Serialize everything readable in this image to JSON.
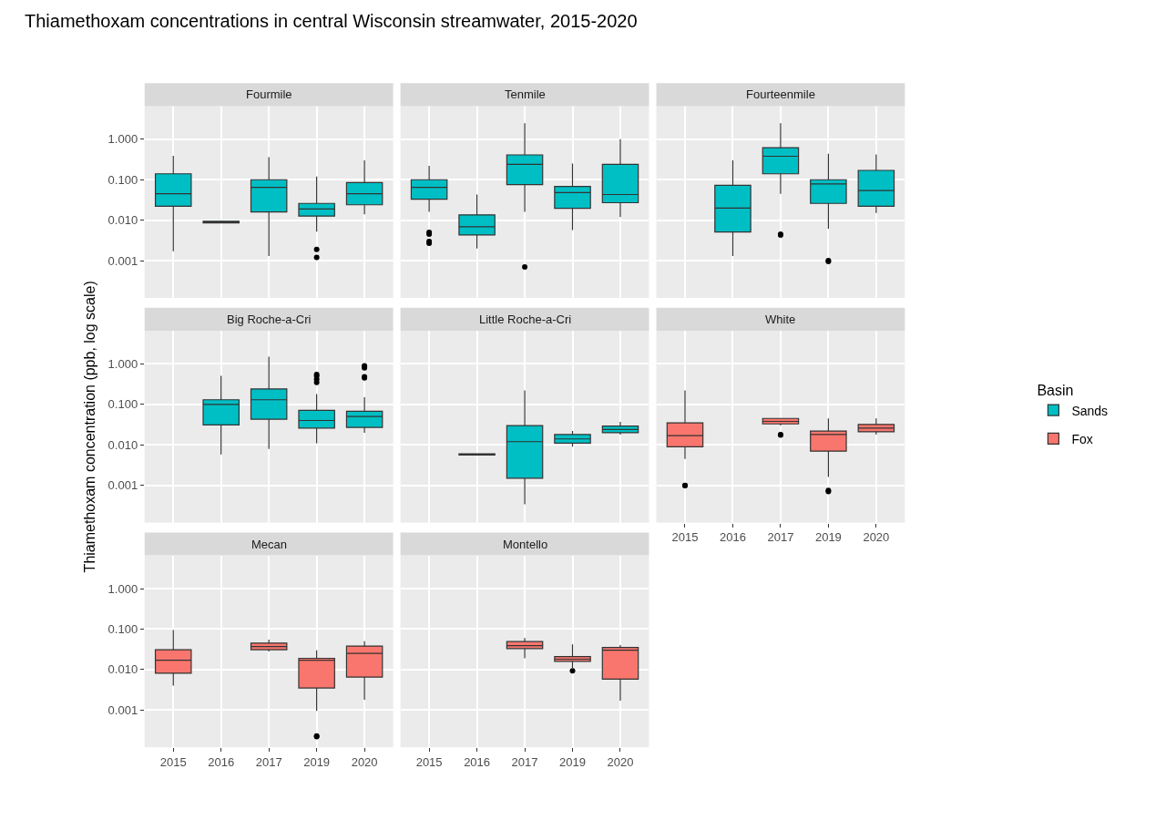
{
  "chart_data": [
    {
      "type": "box",
      "title": "Fourmile",
      "annotations": [
        "Thiamethoxam concentrations in central Wisconsin streamwater, 2015-2020"
      ],
      "categories": [
        "2015",
        "2016",
        "2017",
        "2019",
        "2020"
      ],
      "log": "y",
      "grid": true,
      "tick_labels": "y",
      "ylim": [
        0.00012,
        6.6
      ],
      "yticks": [
        {
          "value": 0.001,
          "label": "0.001"
        },
        {
          "value": 0.01,
          "label": "0.010"
        },
        {
          "value": 0.1,
          "label": "0.100"
        },
        {
          "value": 1,
          "label": "1.000"
        }
      ],
      "series": [
        {
          "name": "Sands",
          "color": "#00bfc4",
          "boxes": [
            {
              "low": 0.0017,
              "q1": 0.022,
              "median": 0.045,
              "q3": 0.14,
              "high": 0.39
            },
            {
              "low": 0.0084,
              "q1": 0.0086,
              "median": 0.009,
              "q3": 0.0094,
              "high": 0.0094
            },
            {
              "low": 0.0013,
              "q1": 0.016,
              "median": 0.065,
              "q3": 0.1,
              "high": 0.36
            },
            {
              "low": 0.0052,
              "q1": 0.0126,
              "median": 0.019,
              "q3": 0.026,
              "high": 0.12,
              "outliers": [
                0.0019,
                0.0012
              ]
            },
            {
              "low": 0.014,
              "q1": 0.024,
              "median": 0.045,
              "q3": 0.085,
              "high": 0.3
            }
          ]
        }
      ]
    },
    {
      "type": "box",
      "title": "Tenmile",
      "categories": [
        "2015",
        "2016",
        "2017",
        "2019",
        "2020"
      ],
      "log": "y",
      "grid": true,
      "tick_labels": false,
      "ylim": [
        0.00012,
        6.6
      ],
      "yticks": [
        {
          "value": 0.001,
          "label": "0.001"
        },
        {
          "value": 0.01,
          "label": "0.010"
        },
        {
          "value": 0.1,
          "label": "0.100"
        },
        {
          "value": 1,
          "label": "1.000"
        }
      ],
      "series": [
        {
          "name": "Sands",
          "color": "#00bfc4",
          "boxes": [
            {
              "low": 0.016,
              "q1": 0.033,
              "median": 0.065,
              "q3": 0.1,
              "high": 0.22,
              "outliers": [
                0.005,
                0.0045,
                0.003,
                0.0027
              ]
            },
            {
              "low": 0.002,
              "q1": 0.0043,
              "median": 0.0069,
              "q3": 0.0135,
              "high": 0.043
            },
            {
              "low": 0.016,
              "q1": 0.076,
              "median": 0.24,
              "q3": 0.41,
              "high": 2.5,
              "outliers": [
                0.0007
              ]
            },
            {
              "low": 0.0057,
              "q1": 0.0196,
              "median": 0.048,
              "q3": 0.068,
              "high": 0.25
            },
            {
              "low": 0.012,
              "q1": 0.027,
              "median": 0.043,
              "q3": 0.24,
              "high": 1.0
            }
          ]
        }
      ]
    },
    {
      "type": "box",
      "title": "Fourteenmile",
      "categories": [
        "2015",
        "2016",
        "2017",
        "2019",
        "2020"
      ],
      "log": "y",
      "grid": true,
      "tick_labels": false,
      "ylim": [
        0.00012,
        6.6
      ],
      "yticks": [
        {
          "value": 0.001,
          "label": "0.001"
        },
        {
          "value": 0.01,
          "label": "0.010"
        },
        {
          "value": 0.1,
          "label": "0.100"
        },
        {
          "value": 1,
          "label": "1.000"
        }
      ],
      "series": [
        {
          "name": "Sands",
          "color": "#00bfc4",
          "boxes": [
            null,
            {
              "low": 0.0013,
              "q1": 0.0051,
              "median": 0.02,
              "q3": 0.073,
              "high": 0.3
            },
            {
              "low": 0.045,
              "q1": 0.14,
              "median": 0.38,
              "q3": 0.62,
              "high": 2.5,
              "outliers": [
                0.0045,
                0.0043
              ]
            },
            {
              "low": 0.0062,
              "q1": 0.026,
              "median": 0.079,
              "q3": 0.1,
              "high": 0.44,
              "outliers": [
                0.001,
                0.00095
              ]
            },
            {
              "low": 0.015,
              "q1": 0.022,
              "median": 0.054,
              "q3": 0.17,
              "high": 0.42
            }
          ]
        }
      ]
    },
    {
      "type": "box",
      "title": "Big Roche-a-Cri",
      "ylabel": "Thiamethoxam concentration (ppb, log scale)",
      "categories": [
        "2015",
        "2016",
        "2017",
        "2019",
        "2020"
      ],
      "log": "y",
      "grid": true,
      "tick_labels": "y",
      "ylim": [
        0.00012,
        6.6
      ],
      "yticks": [
        {
          "value": 0.001,
          "label": "0.001"
        },
        {
          "value": 0.01,
          "label": "0.010"
        },
        {
          "value": 0.1,
          "label": "0.100"
        },
        {
          "value": 1,
          "label": "1.000"
        }
      ],
      "series": [
        {
          "name": "Sands",
          "color": "#00bfc4",
          "boxes": [
            null,
            {
              "low": 0.0058,
              "q1": 0.031,
              "median": 0.1,
              "q3": 0.13,
              "high": 0.51
            },
            {
              "low": 0.0079,
              "q1": 0.043,
              "median": 0.13,
              "q3": 0.24,
              "high": 1.5
            },
            {
              "low": 0.011,
              "q1": 0.026,
              "median": 0.04,
              "q3": 0.071,
              "high": 0.18,
              "outliers": [
                0.55,
                0.5,
                0.42,
                0.35
              ]
            },
            {
              "low": 0.02,
              "q1": 0.027,
              "median": 0.05,
              "q3": 0.068,
              "high": 0.15,
              "outliers": [
                0.9,
                0.85,
                0.8,
                0.48,
                0.45
              ]
            }
          ]
        }
      ]
    },
    {
      "type": "box",
      "title": "Little Roche-a-Cri",
      "categories": [
        "2015",
        "2016",
        "2017",
        "2019",
        "2020"
      ],
      "log": "y",
      "grid": true,
      "tick_labels": false,
      "ylim": [
        0.00012,
        6.6
      ],
      "yticks": [
        {
          "value": 0.001,
          "label": "0.001"
        },
        {
          "value": 0.01,
          "label": "0.010"
        },
        {
          "value": 0.1,
          "label": "0.100"
        },
        {
          "value": 1,
          "label": "1.000"
        }
      ],
      "series": [
        {
          "name": "Sands",
          "color": "#00bfc4",
          "boxes": [
            null,
            {
              "low": 0.0055,
              "q1": 0.0056,
              "median": 0.0058,
              "q3": 0.006,
              "high": 0.0061
            },
            {
              "low": 0.00034,
              "q1": 0.0015,
              "median": 0.012,
              "q3": 0.03,
              "high": 0.22
            },
            {
              "low": 0.009,
              "q1": 0.011,
              "median": 0.014,
              "q3": 0.018,
              "high": 0.022
            },
            {
              "low": 0.018,
              "q1": 0.02,
              "median": 0.024,
              "q3": 0.029,
              "high": 0.037
            }
          ]
        }
      ]
    },
    {
      "type": "box",
      "title": "White",
      "legend": "right",
      "legend_title": "Basin",
      "categories": [
        "2015",
        "2016",
        "2017",
        "2019",
        "2020"
      ],
      "log": "y",
      "grid": true,
      "tick_labels": "x",
      "ylim": [
        0.00012,
        6.6
      ],
      "yticks": [
        {
          "value": 0.001,
          "label": "0.001"
        },
        {
          "value": 0.01,
          "label": "0.010"
        },
        {
          "value": 0.1,
          "label": "0.100"
        },
        {
          "value": 1,
          "label": "1.000"
        }
      ],
      "series": [
        {
          "name": "Fox",
          "color": "#f8766d",
          "boxes": [
            {
              "low": 0.0045,
              "q1": 0.009,
              "median": 0.017,
              "q3": 0.035,
              "high": 0.22,
              "outliers": [
                0.001,
                0.00098
              ]
            },
            null,
            {
              "low": 0.03,
              "q1": 0.033,
              "median": 0.038,
              "q3": 0.045,
              "high": 0.045,
              "outliers": [
                0.018,
                0.0175
              ]
            },
            {
              "low": 0.0016,
              "q1": 0.007,
              "median": 0.018,
              "q3": 0.022,
              "high": 0.045,
              "outliers": [
                0.00075,
                0.0007
              ]
            },
            {
              "low": 0.018,
              "q1": 0.021,
              "median": 0.026,
              "q3": 0.032,
              "high": 0.045
            }
          ]
        }
      ]
    },
    {
      "type": "box",
      "title": "Mecan",
      "categories": [
        "2015",
        "2016",
        "2017",
        "2019",
        "2020"
      ],
      "log": "y",
      "grid": true,
      "ylim": [
        0.00012,
        6.6
      ],
      "yticks": [
        {
          "value": 0.001,
          "label": "0.001"
        },
        {
          "value": 0.01,
          "label": "0.010"
        },
        {
          "value": 0.1,
          "label": "0.100"
        },
        {
          "value": 1,
          "label": "1.000"
        }
      ],
      "series": [
        {
          "name": "Fox",
          "color": "#f8766d",
          "boxes": [
            {
              "low": 0.004,
              "q1": 0.0081,
              "median": 0.017,
              "q3": 0.031,
              "high": 0.095
            },
            null,
            {
              "low": 0.028,
              "q1": 0.031,
              "median": 0.037,
              "q3": 0.045,
              "high": 0.055
            },
            {
              "low": 0.00095,
              "q1": 0.0035,
              "median": 0.017,
              "q3": 0.019,
              "high": 0.03,
              "outliers": [
                0.00023,
                0.00022
              ]
            },
            {
              "low": 0.0018,
              "q1": 0.0065,
              "median": 0.025,
              "q3": 0.038,
              "high": 0.05
            }
          ]
        }
      ]
    },
    {
      "type": "box",
      "title": "Montello",
      "categories": [
        "2015",
        "2016",
        "2017",
        "2019",
        "2020"
      ],
      "log": "y",
      "grid": true,
      "tick_labels": "x",
      "ylim": [
        0.00012,
        6.6
      ],
      "yticks": [
        {
          "value": 0.001,
          "label": "0.001"
        },
        {
          "value": 0.01,
          "label": "0.010"
        },
        {
          "value": 0.1,
          "label": "0.100"
        },
        {
          "value": 1,
          "label": "1.000"
        }
      ],
      "series": [
        {
          "name": "Fox",
          "color": "#f8766d",
          "boxes": [
            null,
            null,
            {
              "low": 0.019,
              "q1": 0.033,
              "median": 0.039,
              "q3": 0.049,
              "high": 0.06
            },
            {
              "low": 0.011,
              "q1": 0.016,
              "median": 0.018,
              "q3": 0.021,
              "high": 0.042,
              "outliers": [
                0.0093
              ]
            },
            {
              "low": 0.0017,
              "q1": 0.0058,
              "median": 0.03,
              "q3": 0.035,
              "high": 0.04
            }
          ]
        }
      ]
    }
  ]
}
